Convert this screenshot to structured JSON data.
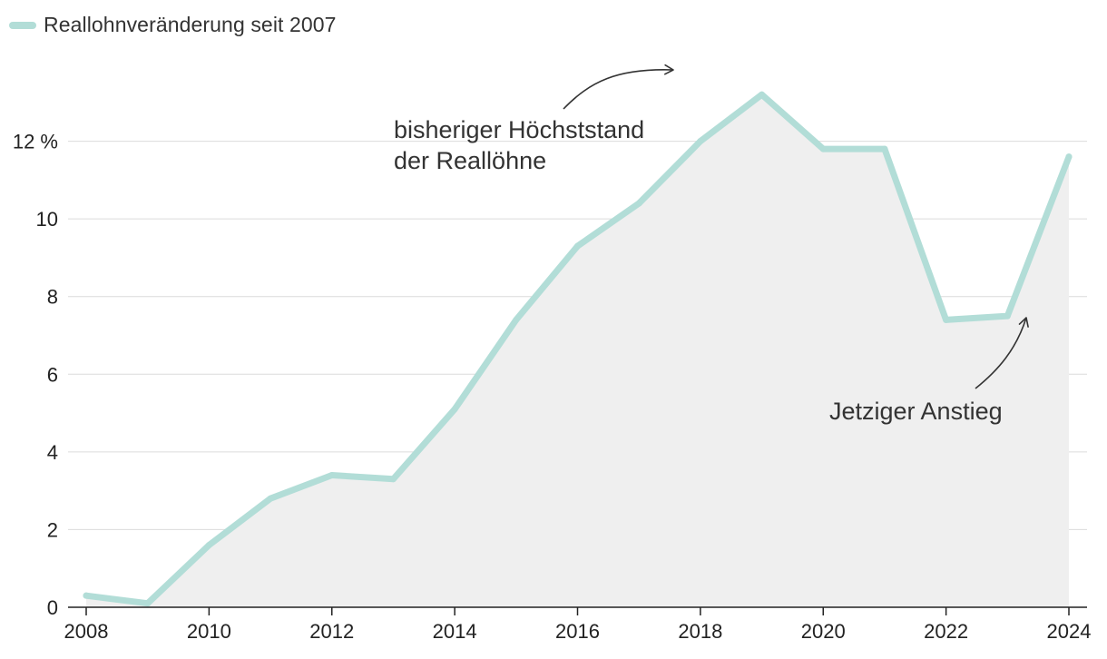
{
  "chart_data": {
    "type": "area",
    "legend": {
      "position": "top-left"
    },
    "x": [
      2008,
      2009,
      2010,
      2011,
      2012,
      2013,
      2014,
      2015,
      2016,
      2017,
      2018,
      2019,
      2020,
      2021,
      2022,
      2023,
      2024
    ],
    "series": [
      {
        "name": "Reallohnveränderung seit 2007",
        "color": "#b2ddd7",
        "values": [
          0.3,
          0.1,
          1.6,
          2.8,
          3.4,
          3.3,
          5.1,
          7.4,
          9.3,
          10.4,
          12.0,
          13.2,
          11.8,
          11.8,
          7.4,
          7.5,
          11.6
        ]
      }
    ],
    "area_fill_color": "#efefef",
    "ylim": [
      0,
      14
    ],
    "xlim": [
      2008,
      2024
    ],
    "yticks": [
      0,
      2,
      4,
      6,
      8,
      10,
      12
    ],
    "ytick_labels": [
      "0",
      "2",
      "4",
      "6",
      "8",
      "10",
      "12 %"
    ],
    "xticks": [
      2008,
      2010,
      2012,
      2014,
      2016,
      2018,
      2020,
      2022,
      2024
    ],
    "xtick_labels": [
      "2008",
      "2010",
      "2012",
      "2014",
      "2016",
      "2018",
      "2020",
      "2022",
      "2024"
    ],
    "grid": "horizontal",
    "annotations": [
      {
        "lines": [
          "bisheriger Höchststand",
          "der Reallöhne"
        ],
        "points_to": {
          "x": 2019,
          "y": 13.2
        }
      },
      {
        "lines": [
          "Jetziger Anstieg"
        ],
        "points_to": {
          "x": 2023,
          "y": 7.5
        }
      }
    ]
  }
}
